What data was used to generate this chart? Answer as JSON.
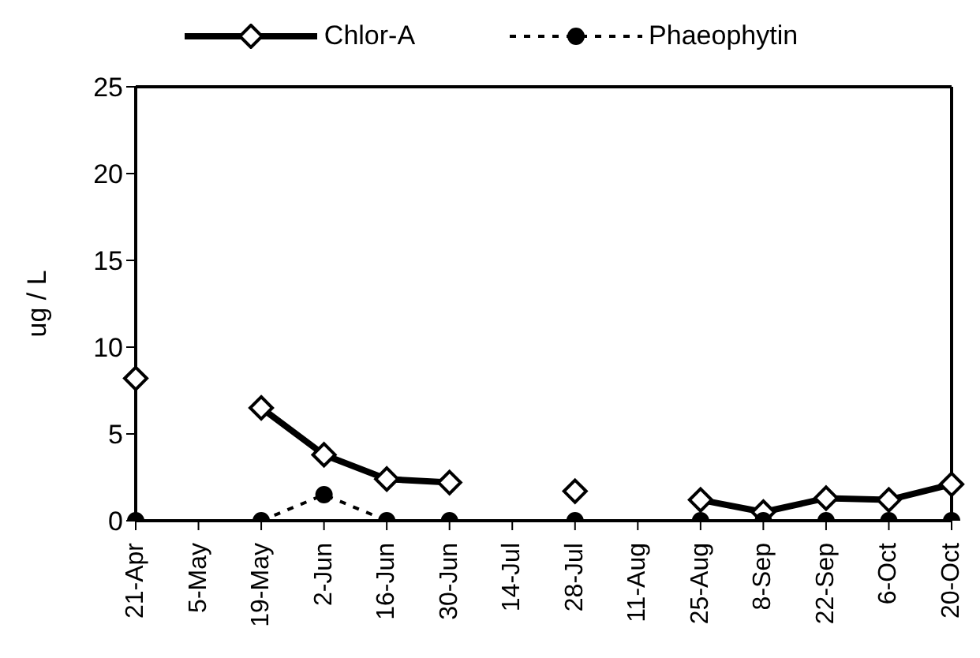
{
  "chart_data": {
    "type": "line",
    "ylabel": "ug / L",
    "categories": [
      "21-Apr",
      "5-May",
      "19-May",
      "2-Jun",
      "16-Jun",
      "30-Jun",
      "14-Jul",
      "28-Jul",
      "11-Aug",
      "25-Aug",
      "8-Sep",
      "22-Sep",
      "6-Oct",
      "20-Oct"
    ],
    "series": [
      {
        "name": "Chlor-A",
        "color": "#000000",
        "marker": "diamond",
        "line_style": "solid",
        "values": [
          8.2,
          null,
          6.5,
          3.8,
          2.4,
          2.2,
          null,
          1.7,
          null,
          1.2,
          0.5,
          1.3,
          1.2,
          2.1
        ]
      },
      {
        "name": "Phaeophytin",
        "color": "#000000",
        "marker": "circle",
        "line_style": "dashed",
        "values": [
          0,
          null,
          0,
          1.5,
          0,
          0,
          null,
          0,
          null,
          0,
          0,
          0,
          0,
          0
        ]
      }
    ],
    "ylim": [
      0,
      25
    ],
    "yticks": [
      0,
      5,
      10,
      15,
      20,
      25
    ],
    "grid": false,
    "legend": "top"
  }
}
